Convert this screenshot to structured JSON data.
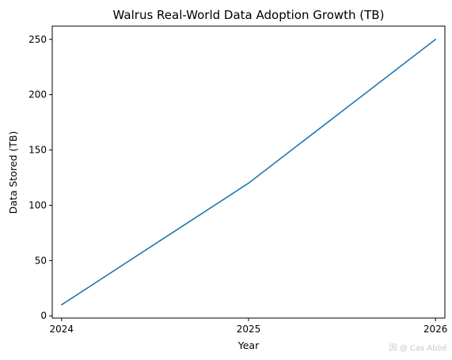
{
  "chart_data": {
    "type": "line",
    "title": "Walrus Real-World Data Adoption Growth (TB)",
    "xlabel": "Year",
    "ylabel": "Data Stored (TB)",
    "x": [
      2024,
      2025,
      2026
    ],
    "series": [
      {
        "values": [
          10,
          120,
          250
        ],
        "color": "#1f77b4"
      }
    ],
    "xlim": [
      2023.95,
      2026.05
    ],
    "ylim": [
      -2,
      262
    ],
    "xticks": [
      "2024",
      "2025",
      "2026"
    ],
    "yticks": [
      "0",
      "50",
      "100",
      "150",
      "200",
      "250"
    ],
    "grid": false
  },
  "watermark": "因 @ Cas Abbé"
}
